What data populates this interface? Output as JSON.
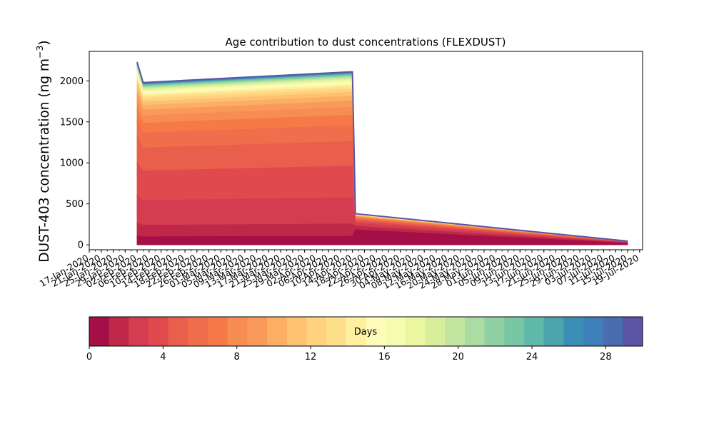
{
  "chart_data": {
    "type": "area",
    "title": "Age contribution to dust concentrations (FLEXDUST)",
    "ylabel_main": "DUST-403 concentration (ng m",
    "ylabel_sup": "−3",
    "ylabel_close": ")",
    "ylim": [
      -60,
      2360
    ],
    "yticks": [
      0,
      500,
      1000,
      1500,
      2000
    ],
    "x_dates": [
      "2020-02-02",
      "2020-02-04",
      "2020-04-13",
      "2020-04-14",
      "2020-04-15",
      "2020-07-15"
    ],
    "total_values": [
      2230,
      1980,
      2110,
      2110,
      380,
      45
    ],
    "x_tick_labels": [
      "17-Jan-2020",
      "21-Jan-2020",
      "25-Jan-2020",
      "29-Jan-2020",
      "02-Feb-2020",
      "06-Feb-2020",
      "10-Feb-2020",
      "14-Feb-2020",
      "18-Feb-2020",
      "22-Feb-2020",
      "26-Feb-2020",
      "01-Mar-2020",
      "05-Mar-2020",
      "09-Mar-2020",
      "13-Mar-2020",
      "17-Mar-2020",
      "21-Mar-2020",
      "25-Mar-2020",
      "29-Mar-2020",
      "02-Apr-2020",
      "06-Apr-2020",
      "10-Apr-2020",
      "14-Apr-2020",
      "18-Apr-2020",
      "22-Apr-2020",
      "26-Apr-2020",
      "30-Apr-2020",
      "04-May-2020",
      "08-May-2020",
      "12-May-2020",
      "16-May-2020",
      "20-May-2020",
      "24-May-2020",
      "28-May-2020",
      "01-Jun-2020",
      "05-Jun-2020",
      "09-Jun-2020",
      "13-Jun-2020",
      "17-Jun-2020",
      "21-Jun-2020",
      "25-Jun-2020",
      "29-Jun-2020",
      "03-Jul-2020",
      "07-Jul-2020",
      "11-Jul-2020",
      "15-Jul-2020",
      "19-Jul-2020"
    ],
    "x_range": [
      "2020-01-17",
      "2020-07-20"
    ],
    "grid": false,
    "colorbar": {
      "label": "Days",
      "range": [
        0,
        30
      ],
      "ticks": [
        0,
        4,
        8,
        12,
        16,
        20,
        24,
        28
      ],
      "colors": [
        "#a50f47",
        "#c0284a",
        "#d43d4f",
        "#e04a4f",
        "#ea5f4b",
        "#f06e4b",
        "#f57a48",
        "#f88d52",
        "#fa9a5a",
        "#fcae62",
        "#fdc171",
        "#fed27f",
        "#fee08b",
        "#fff0a0",
        "#fffbb8",
        "#f5fbaf",
        "#eaf7a0",
        "#d7ef9b",
        "#c2e6a0",
        "#aadca4",
        "#90d1a4",
        "#78c6a4",
        "#5fb8a8",
        "#4aa5ad",
        "#3a8fb6",
        "#3f7fbb",
        "#4a6db0",
        "#5a55a4"
      ]
    },
    "stack_fractions": [
      0.05,
      0.07,
      0.15,
      0.18,
      0.14,
      0.09,
      0.06,
      0.045,
      0.035,
      0.028,
      0.022,
      0.018,
      0.015,
      0.012,
      0.01,
      0.009,
      0.008,
      0.007,
      0.006,
      0.005,
      0.005,
      0.004,
      0.004,
      0.003,
      0.003,
      0.003,
      0.002,
      0.002
    ],
    "stack_fractions_late": [
      0.5,
      0.12,
      0.1,
      0.07,
      0.05,
      0.035,
      0.028,
      0.022,
      0.018,
      0.014,
      0.011,
      0.009,
      0.007,
      0.006,
      0.005,
      0.004,
      0.004,
      0.003,
      0.003,
      0.003,
      0.002,
      0.002,
      0.002,
      0.002,
      0.002,
      0.001,
      0.001,
      0.001
    ]
  }
}
